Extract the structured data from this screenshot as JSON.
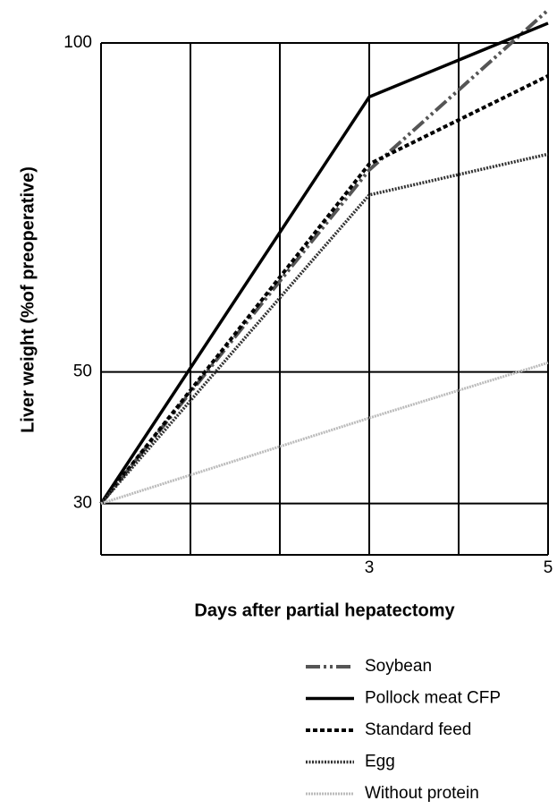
{
  "chart_data": {
    "type": "line",
    "x_label": "Days after partial hepatectomy",
    "y_label": "Liver weight (%of preoperative)",
    "xlim": [
      0,
      5
    ],
    "xticks": [
      3,
      5
    ],
    "xgrid": [
      1,
      2,
      3,
      4
    ],
    "ylim": [
      22.2,
      100
    ],
    "yticks": [
      30,
      50,
      100
    ],
    "grid": true,
    "series": [
      {
        "name": "Soybean",
        "color": "#555555",
        "dash": "16 4 3 4 3 4",
        "width": 4,
        "x": [
          0,
          3,
          5
        ],
        "values": [
          30,
          80.7,
          105
        ]
      },
      {
        "name": "Pollock meat CFP",
        "color": "#000000",
        "dash": "none",
        "width": 3.5,
        "x": [
          0,
          3,
          5
        ],
        "values": [
          30,
          91.8,
          103
        ]
      },
      {
        "name": "Standard feed",
        "color": "#000000",
        "dash": "5 3",
        "width": 4,
        "x": [
          0,
          3,
          5
        ],
        "values": [
          30,
          81.6,
          95
        ]
      },
      {
        "name": "Egg",
        "color": "#333333",
        "dash": "2 1.5",
        "width": 3.5,
        "x": [
          0,
          3,
          5
        ],
        "values": [
          30,
          76.9,
          83.1
        ]
      },
      {
        "name": "Without protein",
        "color": "#bbbbbb",
        "dash": "2 1",
        "width": 3,
        "x": [
          0,
          3,
          5
        ],
        "values": [
          30,
          43,
          51.4
        ]
      }
    ]
  }
}
